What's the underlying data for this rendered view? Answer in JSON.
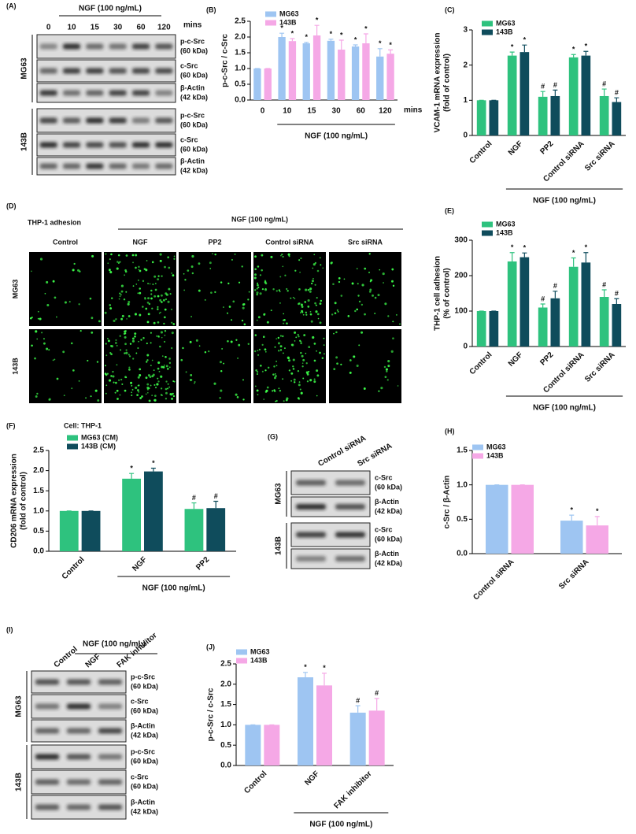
{
  "chart_data": [
    {
      "type": "bar",
      "panel": "(B)",
      "ylabel": [
        "p-c-Src / c-Src"
      ],
      "categories": [
        "0",
        "10",
        "15",
        "30",
        "60",
        "120"
      ],
      "xunit": "mins",
      "xlabel": "NGF (100 ng/mL)",
      "ylim": [
        0,
        2.5
      ],
      "yticks": [
        {
          "value": 0,
          "label": "0.0"
        },
        {
          "value": 0.5,
          "label": "0.5"
        },
        {
          "value": 1,
          "label": "1.0"
        },
        {
          "value": 1.5,
          "label": "1.5"
        },
        {
          "value": 2,
          "label": "2.0"
        },
        {
          "value": 2.5,
          "label": "2.5"
        }
      ],
      "series": [
        {
          "name": "MG63",
          "color": "#9ec5f2",
          "values": [
            1,
            2.0,
            1.8,
            1.88,
            1.7,
            1.38
          ],
          "errors": [
            0,
            0.12,
            0.03,
            0.05,
            0.05,
            0.25
          ],
          "annotations": [
            null,
            "*",
            "*",
            "*",
            "*",
            "*"
          ]
        },
        {
          "name": "143B",
          "color": "#f5a8e6",
          "values": [
            1,
            1.87,
            2.05,
            1.6,
            1.8,
            1.47
          ],
          "errors": [
            0,
            0.08,
            0.32,
            0.3,
            0.3,
            0.12
          ],
          "annotations": [
            null,
            "*",
            "*",
            "*",
            "*",
            "*"
          ]
        }
      ]
    },
    {
      "type": "bar",
      "panel": "(C)",
      "ylabel": [
        "VCAM-1 mRNA expression",
        "(fold of control)"
      ],
      "categories": [
        "Control",
        "NGF",
        "PP2",
        "Control siRNA",
        "Src siRNA"
      ],
      "xlabel": "NGF (100 ng/mL)",
      "ylim": [
        0,
        3
      ],
      "yticks": [
        0,
        1,
        2,
        3
      ],
      "series": [
        {
          "name": "MG63",
          "color": "#2ec27e",
          "values": [
            1,
            2.27,
            1.1,
            2.22,
            1.12
          ],
          "errors": [
            0,
            0.1,
            0.15,
            0.08,
            0.2
          ],
          "annotations": [
            null,
            "*",
            "#",
            "*",
            "#"
          ]
        },
        {
          "name": "143B",
          "color": "#0f4c5c",
          "values": [
            1,
            2.37,
            1.12,
            2.27,
            0.95
          ],
          "errors": [
            0,
            0.2,
            0.17,
            0.12,
            0.12
          ],
          "annotations": [
            null,
            "*",
            "#",
            "*",
            "#"
          ]
        }
      ]
    },
    {
      "type": "bar",
      "panel": "(E)",
      "ylabel": [
        "THP-1 cell adhesion",
        "(% of control)"
      ],
      "categories": [
        "Control",
        "NGF",
        "PP2",
        "Control siRNA",
        "Src siRNA"
      ],
      "xlabel": "NGF (100 ng/mL)",
      "ylim": [
        0,
        300
      ],
      "yticks": [
        0,
        100,
        200,
        300
      ],
      "series": [
        {
          "name": "MG63",
          "color": "#2ec27e",
          "values": [
            100,
            240,
            110,
            225,
            140
          ],
          "errors": [
            0,
            25,
            10,
            25,
            20
          ],
          "annotations": [
            null,
            "*",
            "#",
            "*",
            "#"
          ]
        },
        {
          "name": "143B",
          "color": "#0f4c5c",
          "values": [
            100,
            252,
            136,
            237,
            120
          ],
          "errors": [
            0,
            12,
            20,
            28,
            15
          ],
          "annotations": [
            null,
            "*",
            "#",
            "*",
            "#"
          ]
        }
      ]
    },
    {
      "type": "bar",
      "panel": "(F)",
      "legend_title": "Cell: THP-1",
      "ylabel": [
        "CD206 mRNA expression",
        "(fold of control)"
      ],
      "categories": [
        "Control",
        "NGF",
        "PP2"
      ],
      "xlabel": "NGF (100 ng/mL)",
      "ylim": [
        0,
        2.5
      ],
      "yticks": [
        {
          "value": 0,
          "label": "0.0"
        },
        {
          "value": 0.5,
          "label": "0.5"
        },
        {
          "value": 1,
          "label": "1.0"
        },
        {
          "value": 1.5,
          "label": "1.5"
        },
        {
          "value": 2,
          "label": "2.0"
        },
        {
          "value": 2.5,
          "label": "2.5"
        }
      ],
      "series": [
        {
          "name": "MG63 (CM)",
          "color": "#2ec27e",
          "values": [
            1,
            1.8,
            1.05
          ],
          "errors": [
            0,
            0.13,
            0.15
          ],
          "annotations": [
            null,
            "*",
            "#"
          ]
        },
        {
          "name": "143B (CM)",
          "color": "#0f4c5c",
          "values": [
            1,
            1.98,
            1.07
          ],
          "errors": [
            0,
            0.08,
            0.17
          ],
          "annotations": [
            null,
            "*",
            "#"
          ]
        }
      ]
    },
    {
      "type": "bar",
      "panel": "(H)",
      "ylabel": [
        "c-Src / β-Actin"
      ],
      "categories": [
        "Control siRNA",
        "Src siRNA"
      ],
      "ylim": [
        0,
        1.5
      ],
      "yticks": [
        {
          "value": 0,
          "label": "0.0"
        },
        {
          "value": 0.5,
          "label": "0.5"
        },
        {
          "value": 1,
          "label": "1.0"
        },
        {
          "value": 1.5,
          "label": "1.5"
        }
      ],
      "series": [
        {
          "name": "MG63",
          "color": "#9ec5f2",
          "values": [
            1,
            0.48
          ],
          "errors": [
            0,
            0.08
          ],
          "annotations": [
            null,
            "*"
          ]
        },
        {
          "name": "143B",
          "color": "#f5a8e6",
          "values": [
            1,
            0.41
          ],
          "errors": [
            0,
            0.13
          ],
          "annotations": [
            null,
            "*"
          ]
        }
      ]
    },
    {
      "type": "bar",
      "panel": "(J)",
      "ylabel": [
        "p-c-Src / c-Src"
      ],
      "categories": [
        "Control",
        "NGF",
        "FAK inhibitor"
      ],
      "xlabel": "NGF (100 ng/mL)",
      "ylim": [
        0,
        2.5
      ],
      "yticks": [
        {
          "value": 0,
          "label": "0.0"
        },
        {
          "value": 0.5,
          "label": "0.5"
        },
        {
          "value": 1,
          "label": "1.0"
        },
        {
          "value": 1.5,
          "label": "1.5"
        },
        {
          "value": 2,
          "label": "2.0"
        },
        {
          "value": 2.5,
          "label": "2.5"
        }
      ],
      "series": [
        {
          "name": "MG63",
          "color": "#9ec5f2",
          "values": [
            1,
            2.17,
            1.3
          ],
          "errors": [
            0,
            0.12,
            0.17
          ],
          "annotations": [
            null,
            "*",
            "#"
          ]
        },
        {
          "name": "143B",
          "color": "#f5a8e6",
          "values": [
            1,
            1.97,
            1.35
          ],
          "errors": [
            0,
            0.3,
            0.3
          ],
          "annotations": [
            null,
            "*",
            "#"
          ]
        }
      ]
    }
  ],
  "blots": [
    {
      "panel": "(A)",
      "header": "NGF (100 ng/mL)",
      "lanes": [
        "0",
        "10",
        "15",
        "30",
        "60",
        "120"
      ],
      "lane_unit": "mins",
      "groups": [
        {
          "name": "MG63",
          "rows": [
            [
              "p-c-Src",
              "(60 kDa)"
            ],
            [
              "c-Src",
              "(60 kDa)"
            ],
            [
              "β-Actin",
              "(42 kDa)"
            ]
          ]
        },
        {
          "name": "143B",
          "rows": [
            [
              "p-c-Src",
              "(60 kDa)"
            ],
            [
              "c-Src",
              "(60 kDa)"
            ],
            [
              "β-Actin",
              "(42 kDa)"
            ]
          ]
        }
      ]
    },
    {
      "panel": "(G)",
      "lanes": [
        "Control siRNA",
        "Src siRNA"
      ],
      "groups": [
        {
          "name": "MG63",
          "rows": [
            [
              "c-Src",
              "(60 kDa)"
            ],
            [
              "β-Actin",
              "(42 kDa)"
            ]
          ]
        },
        {
          "name": "143B",
          "rows": [
            [
              "c-Src",
              "(60 kDa)"
            ],
            [
              "β-Actin",
              "(42 kDa)"
            ]
          ]
        }
      ]
    },
    {
      "panel": "(I)",
      "header": "NGF (100 ng/mL)",
      "lanes": [
        "Control",
        "NGF",
        "FAK inhibitor"
      ],
      "groups": [
        {
          "name": "MG63",
          "rows": [
            [
              "p-c-Src",
              "(60 kDa)"
            ],
            [
              "c-Src",
              "(60 kDa)"
            ],
            [
              "β-Actin",
              "(42 kDa)"
            ]
          ]
        },
        {
          "name": "143B",
          "rows": [
            [
              "p-c-Src",
              "(60 kDa)"
            ],
            [
              "c-Src",
              "(60 kDa)"
            ],
            [
              "β-Actin",
              "(42 kDa)"
            ]
          ]
        }
      ]
    }
  ],
  "micrographs": {
    "panel": "(D)",
    "title": "THP-1 adhesion",
    "header": "NGF (100 ng/mL)",
    "columns": [
      "Control",
      "NGF",
      "PP2",
      "Control siRNA",
      "Src siRNA"
    ],
    "rows": [
      "MG63",
      "143B"
    ]
  }
}
